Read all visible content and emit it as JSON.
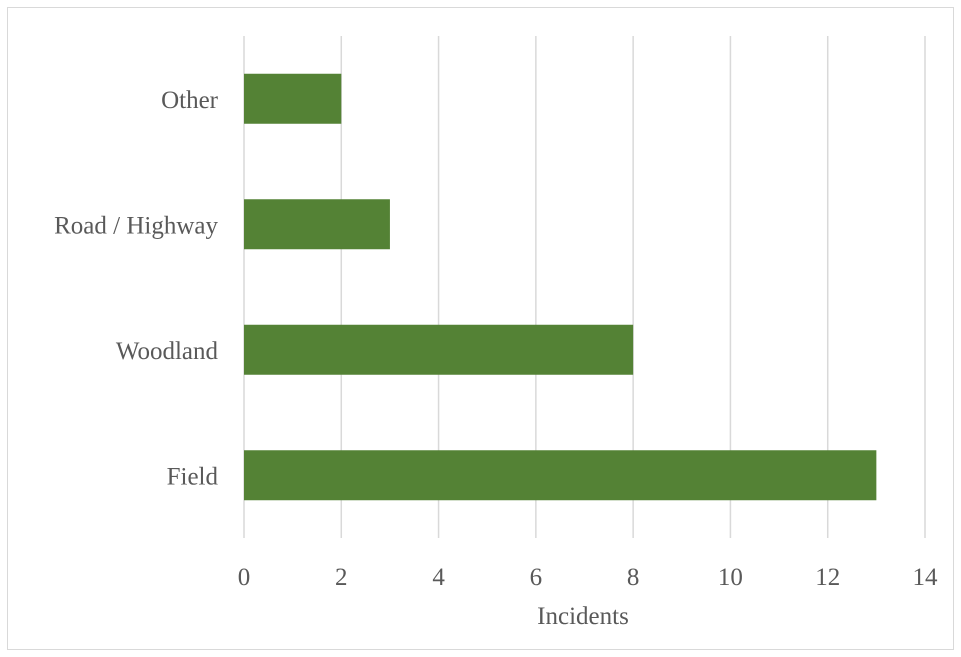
{
  "chart_data": {
    "type": "bar",
    "orientation": "horizontal",
    "categories": [
      "Other",
      "Road / Highway",
      "Woodland",
      "Field"
    ],
    "values": [
      2,
      3,
      8,
      13
    ],
    "title": "",
    "xlabel": "Incidents",
    "ylabel": "",
    "xlim": [
      0,
      14
    ],
    "xticks": [
      0,
      2,
      4,
      6,
      8,
      10,
      12,
      14
    ],
    "grid": "vertical",
    "bar_color": "#548235",
    "gridline_color": "#d9d9d9",
    "label_color": "#595959"
  }
}
